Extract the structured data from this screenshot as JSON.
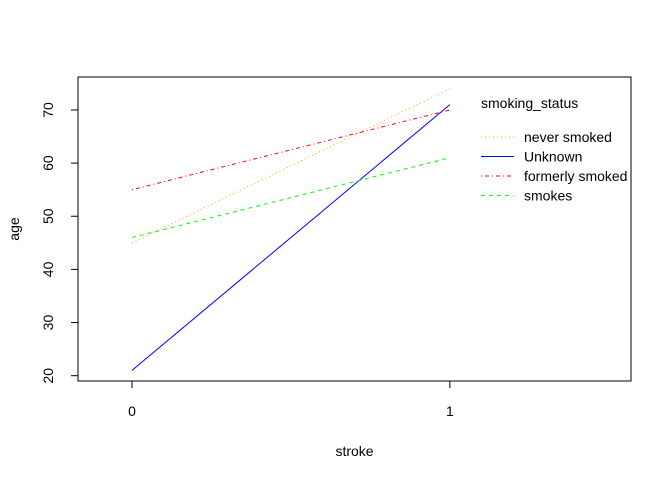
{
  "chart_data": {
    "type": "line",
    "title": "",
    "xlabel": "stroke",
    "ylabel": "age",
    "x_ticks": [
      "0",
      "1"
    ],
    "y_ticks": [
      "20",
      "30",
      "40",
      "50",
      "60",
      "70"
    ],
    "x": [
      0,
      1
    ],
    "xlim": [
      -0.17,
      1.57
    ],
    "ylim": [
      19.0,
      76.2
    ],
    "grid": false,
    "legend": {
      "title": "smoking_status",
      "placement": "top-right",
      "boxed": false
    },
    "series": [
      {
        "name": "never smoked",
        "values": [
          45.0,
          74.0
        ],
        "color": "#ffa500",
        "dash": "dotted"
      },
      {
        "name": "Unknown",
        "values": [
          21.0,
          71.0
        ],
        "color": "#0000ff",
        "dash": "solid"
      },
      {
        "name": "formerly smoked",
        "values": [
          55.0,
          70.0
        ],
        "color": "#ff0000",
        "dash": "dotdash"
      },
      {
        "name": "smokes",
        "values": [
          46.0,
          61.0
        ],
        "color": "#00ff00",
        "dash": "dashed"
      }
    ]
  }
}
